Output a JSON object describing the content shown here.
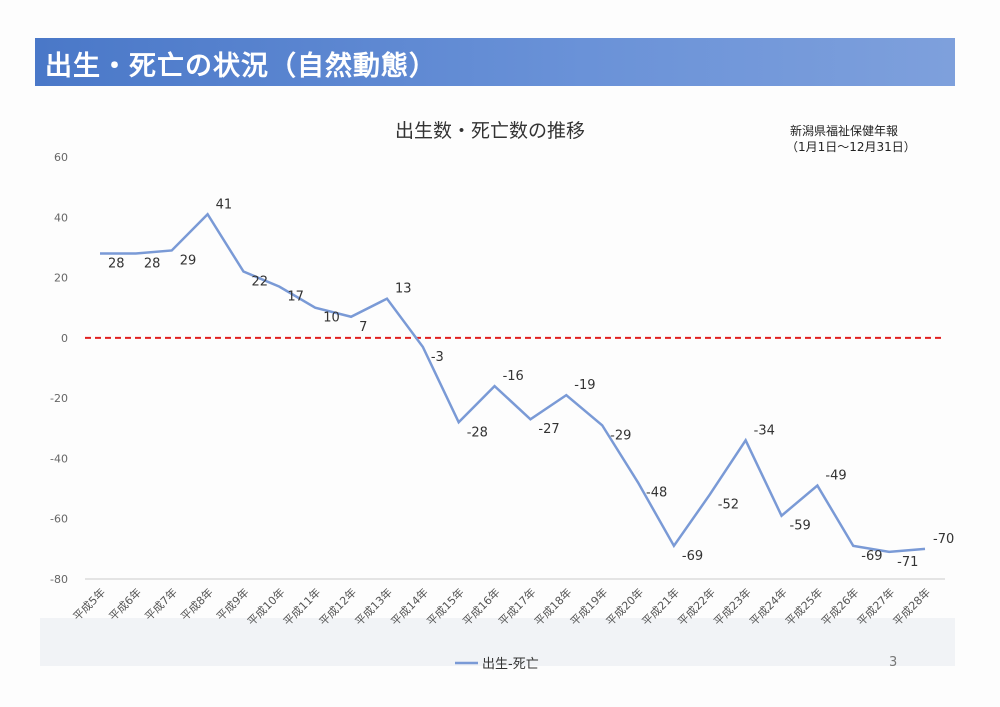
{
  "header": {
    "title": "出生・死亡の状況（自然動態）"
  },
  "source": {
    "line1": "新潟県福祉保健年報",
    "line2": "（1月1日～12月31日）"
  },
  "page_number": "3",
  "colors": {
    "banner": "#4a78c8",
    "line": "#7a9ad6",
    "zero_line": "#e02020"
  },
  "chart_data": {
    "type": "line",
    "title": "出生数・死亡数の推移",
    "xlabel": "",
    "ylabel": "",
    "ylim": [
      -80,
      60
    ],
    "yticks": [
      60,
      40,
      20,
      0,
      -20,
      -40,
      -60,
      -80
    ],
    "categories": [
      "平成5年",
      "平成6年",
      "平成7年",
      "平成8年",
      "平成9年",
      "平成10年",
      "平成11年",
      "平成12年",
      "平成13年",
      "平成14年",
      "平成15年",
      "平成16年",
      "平成17年",
      "平成18年",
      "平成19年",
      "平成20年",
      "平成21年",
      "平成22年",
      "平成23年",
      "平成24年",
      "平成25年",
      "平成26年",
      "平成27年",
      "平成28年"
    ],
    "series": [
      {
        "name": "出生-死亡",
        "values": [
          28,
          28,
          29,
          41,
          22,
          17,
          10,
          7,
          13,
          -3,
          -28,
          -16,
          -27,
          -19,
          -29,
          -48,
          -69,
          -52,
          -34,
          -59,
          -49,
          -69,
          -71,
          -70
        ]
      }
    ],
    "reference_line": 0,
    "legend": "bottom",
    "grid": false
  }
}
